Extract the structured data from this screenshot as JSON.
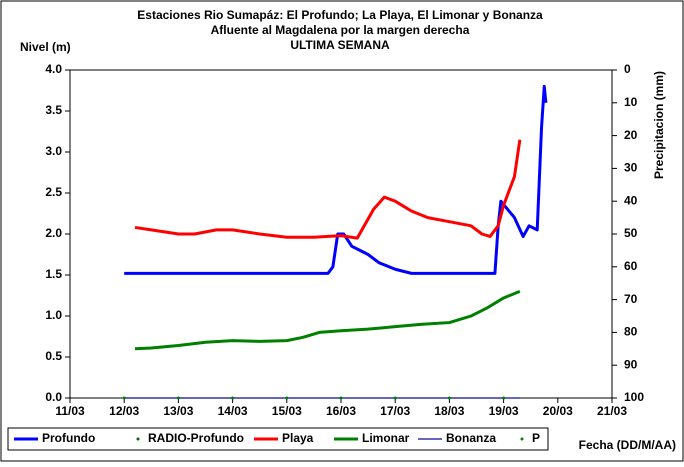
{
  "chart_data": {
    "type": "line",
    "title": "Estaciones Rio Sumapáz: El Profundo; La Playa, El Limonar y Bonanza",
    "subtitle": "Afluente al Magdalena por la margen derecha",
    "subtitle2": "ULTIMA SEMANA",
    "ylabel": "Nivel (m)",
    "y2label": "Precipitacion (mm)",
    "xlabel": "Fecha (DD/M/AA)",
    "xlim": [
      11,
      21
    ],
    "xticks": [
      {
        "value": 11,
        "label": "11/03"
      },
      {
        "value": 12,
        "label": "12/03"
      },
      {
        "value": 13,
        "label": "13/03"
      },
      {
        "value": 14,
        "label": "14/03"
      },
      {
        "value": 15,
        "label": "15/03"
      },
      {
        "value": 16,
        "label": "16/03"
      },
      {
        "value": 17,
        "label": "17/03"
      },
      {
        "value": 18,
        "label": "18/03"
      },
      {
        "value": 19,
        "label": "19/03"
      },
      {
        "value": 20,
        "label": "20/03"
      },
      {
        "value": 21,
        "label": "21/03"
      }
    ],
    "ylim": [
      0,
      4
    ],
    "yticks": [
      {
        "value": 0,
        "label": "0.0"
      },
      {
        "value": 0.5,
        "label": "0.5"
      },
      {
        "value": 1,
        "label": "1.0"
      },
      {
        "value": 1.5,
        "label": "1.5"
      },
      {
        "value": 2,
        "label": "2.0"
      },
      {
        "value": 2.5,
        "label": "2.5"
      },
      {
        "value": 3,
        "label": "3.0"
      },
      {
        "value": 3.5,
        "label": "3.5"
      },
      {
        "value": 4,
        "label": "4.0"
      }
    ],
    "y2lim": [
      0,
      100
    ],
    "y2_inverted": true,
    "y2ticks": [
      0,
      10,
      20,
      30,
      40,
      50,
      60,
      70,
      80,
      90,
      100
    ],
    "series": [
      {
        "name": "Profundo",
        "color": "#0000ff",
        "style": "line",
        "width": 3,
        "x": [
          12.0,
          15.76,
          15.85,
          15.94,
          16.05,
          16.2,
          16.35,
          16.5,
          16.7,
          17.0,
          17.3,
          18.84,
          18.9,
          18.95,
          19.2,
          19.36,
          19.47,
          19.62,
          19.7,
          19.75,
          19.78
        ],
        "values": [
          1.52,
          1.52,
          1.6,
          2.0,
          2.0,
          1.85,
          1.8,
          1.75,
          1.65,
          1.57,
          1.52,
          1.52,
          2.1,
          2.4,
          2.2,
          1.97,
          2.1,
          2.05,
          3.3,
          3.8,
          3.6
        ]
      },
      {
        "name": "RADIO-Profundo",
        "color": "#006400",
        "style": "markers",
        "x": [],
        "values": []
      },
      {
        "name": "Playa",
        "color": "#ff0000",
        "style": "line",
        "width": 3,
        "x": [
          12.2,
          12.5,
          13.0,
          13.3,
          13.7,
          14.0,
          14.5,
          15.0,
          15.5,
          16.0,
          16.3,
          16.6,
          16.8,
          17.0,
          17.3,
          17.6,
          18.0,
          18.4,
          18.6,
          18.75,
          18.9,
          19.0,
          19.2,
          19.3
        ],
        "values": [
          2.08,
          2.05,
          2.0,
          2.0,
          2.05,
          2.05,
          2.0,
          1.96,
          1.96,
          1.98,
          1.95,
          2.3,
          2.45,
          2.4,
          2.28,
          2.2,
          2.15,
          2.1,
          2.0,
          1.97,
          2.1,
          2.35,
          2.7,
          3.15
        ]
      },
      {
        "name": "Limonar",
        "color": "#008000",
        "style": "line",
        "width": 3,
        "x": [
          12.2,
          12.5,
          13.0,
          13.5,
          14.0,
          14.5,
          15.0,
          15.3,
          15.6,
          16.0,
          16.5,
          17.0,
          17.5,
          18.0,
          18.4,
          18.7,
          19.0,
          19.3
        ],
        "values": [
          0.6,
          0.61,
          0.64,
          0.68,
          0.7,
          0.69,
          0.7,
          0.74,
          0.8,
          0.82,
          0.84,
          0.87,
          0.9,
          0.92,
          1.0,
          1.1,
          1.22,
          1.3
        ]
      },
      {
        "name": "Bonanza",
        "color": "#3333aa",
        "style": "line",
        "width": 1.5,
        "x": [
          12.0,
          19.3
        ],
        "values": [
          0,
          0
        ]
      },
      {
        "name": "P",
        "color": "#008000",
        "style": "markers",
        "x": [
          12,
          13,
          14,
          15,
          16,
          17,
          18,
          19
        ],
        "values": [
          0,
          0,
          0,
          0,
          0,
          0,
          0,
          0
        ]
      }
    ]
  }
}
